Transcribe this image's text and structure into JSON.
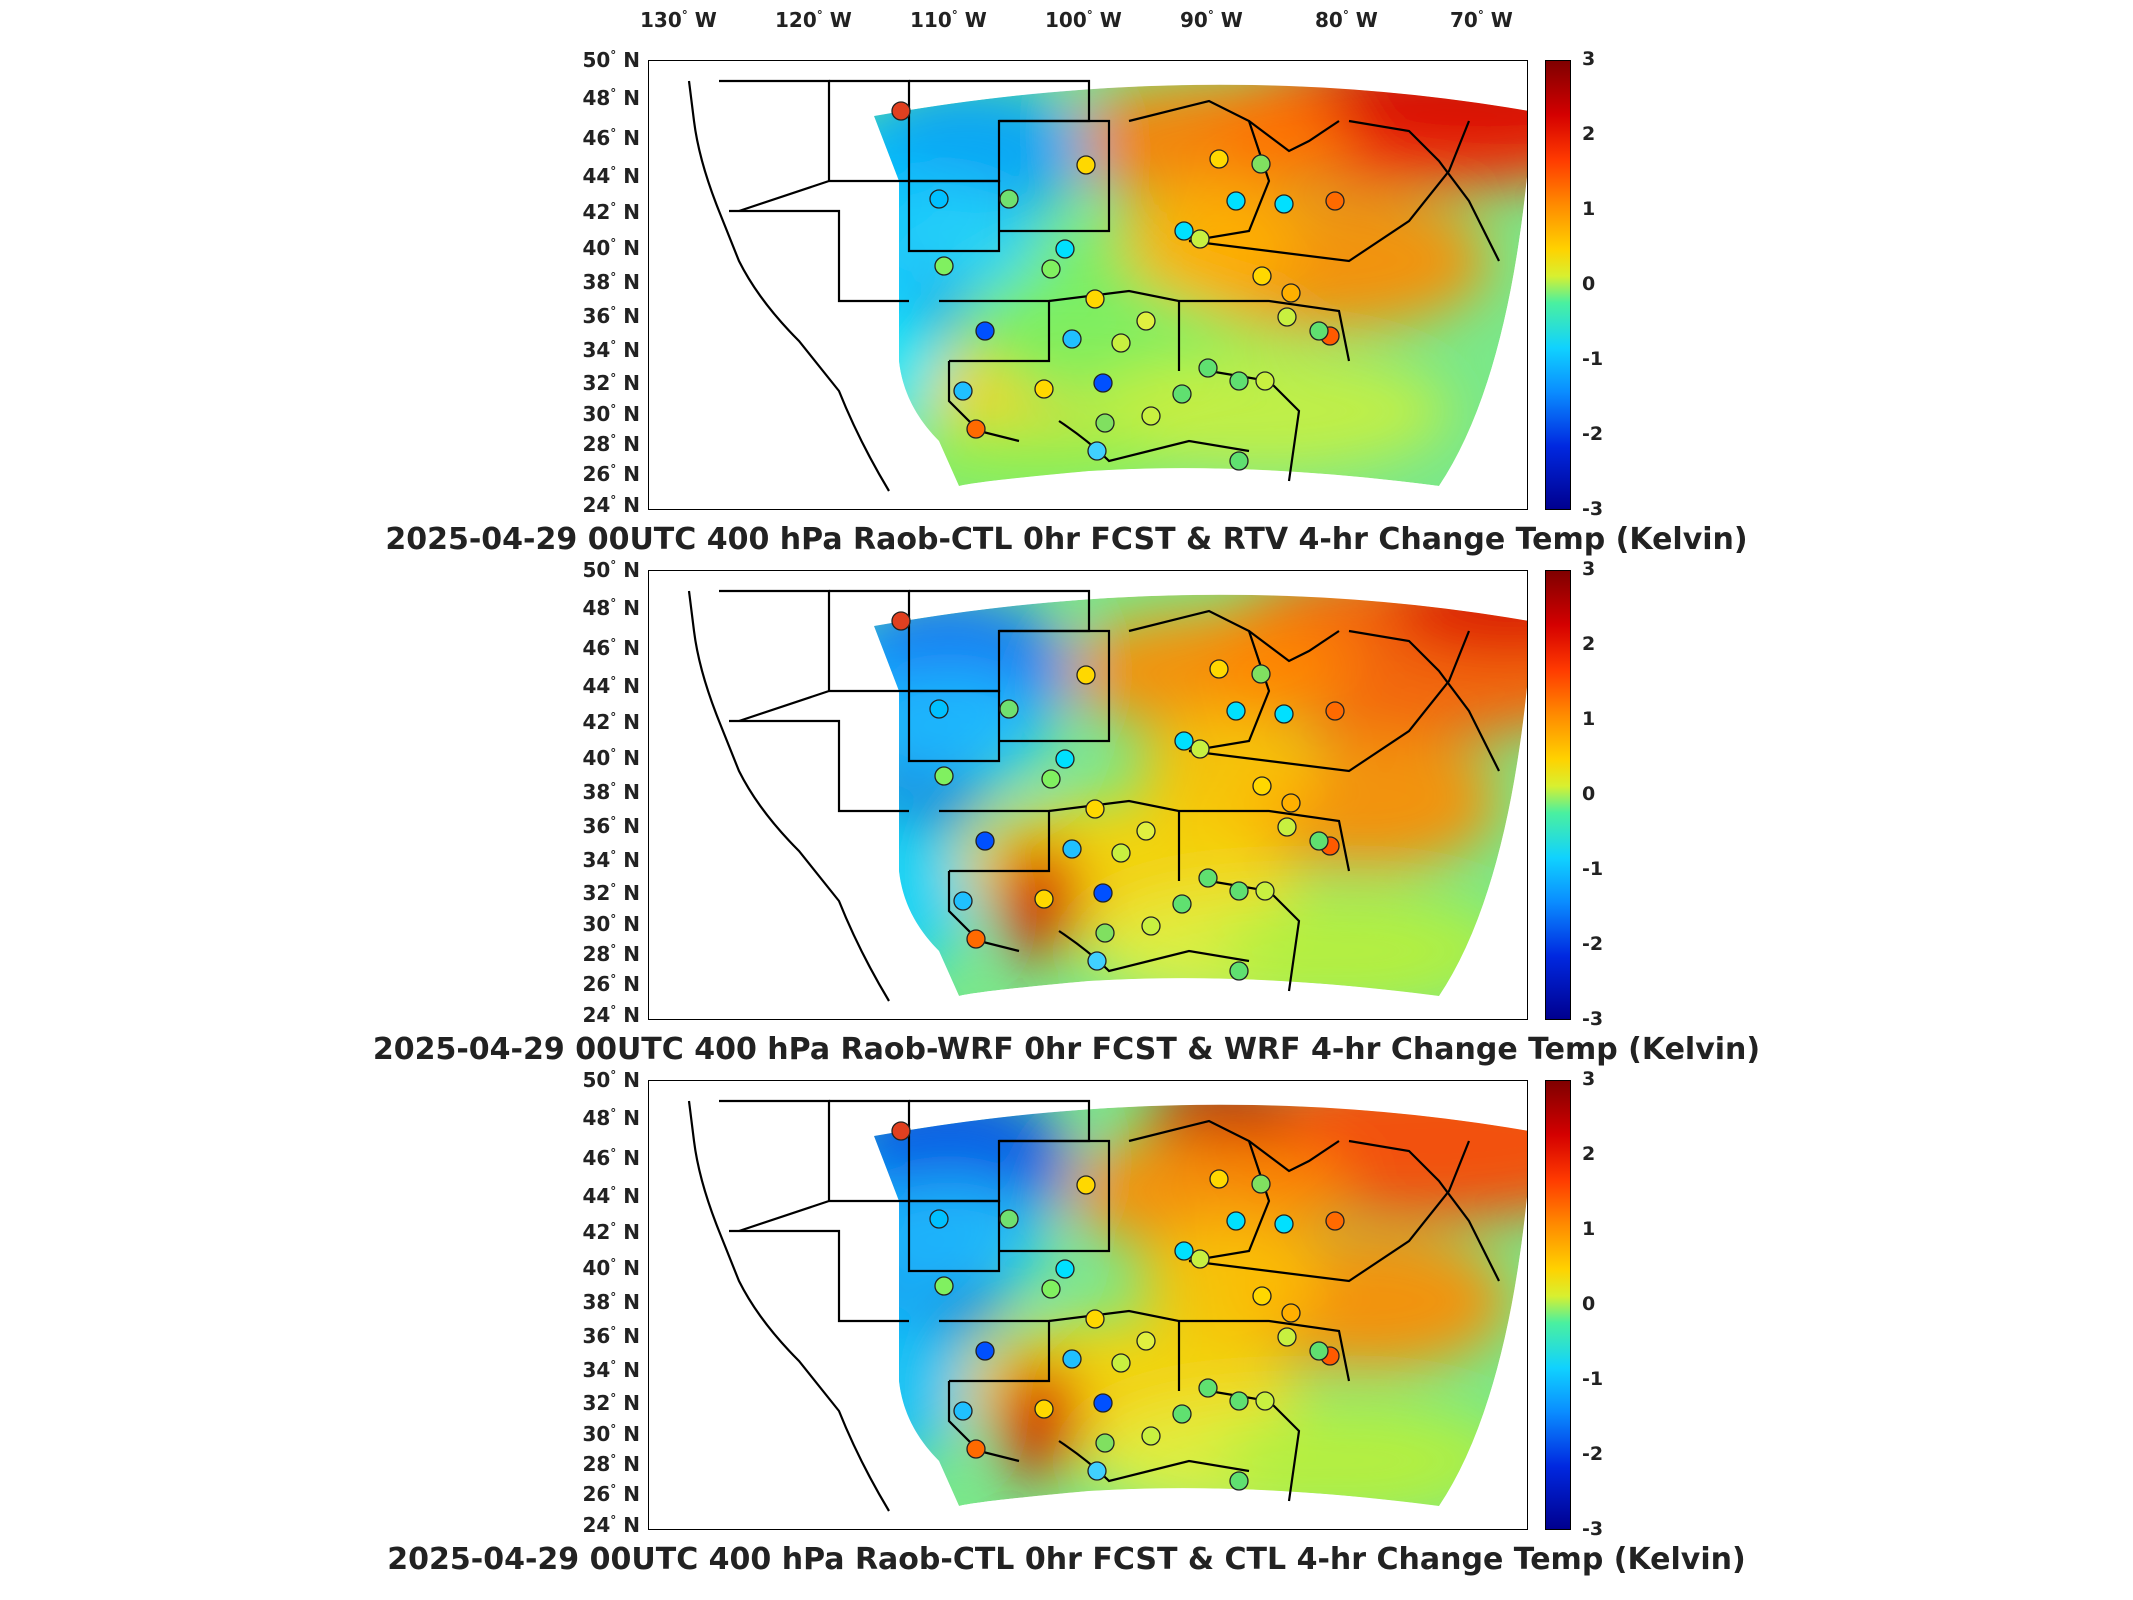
{
  "lon_labels": [
    "130",
    "120",
    "110",
    "100",
    "90",
    "80",
    "70"
  ],
  "lon_suffix": "W",
  "lat_labels": [
    "50",
    "48",
    "46",
    "44",
    "42",
    "40",
    "38",
    "36",
    "34",
    "32",
    "30",
    "28",
    "26",
    "24"
  ],
  "lat_suffix": "N",
  "degree_symbol": "°",
  "colorbar": {
    "ticks": [
      "3",
      "2",
      "1",
      "0",
      "-1",
      "-2",
      "-3"
    ],
    "min": -3,
    "max": 3,
    "colormap": "jet"
  },
  "panels": [
    {
      "title": "2025-04-29 00UTC 400 hPa Raob-CTL 0hr FCST & RTV 4-hr Change Temp (Kelvin)"
    },
    {
      "title": "2025-04-29 00UTC 400 hPa Raob-WRF 0hr FCST & WRF 4-hr Change Temp (Kelvin)"
    },
    {
      "title": "2025-04-29 00UTC 400 hPa Raob-CTL 0hr FCST & CTL 4-hr Change Temp (Kelvin)"
    }
  ]
}
